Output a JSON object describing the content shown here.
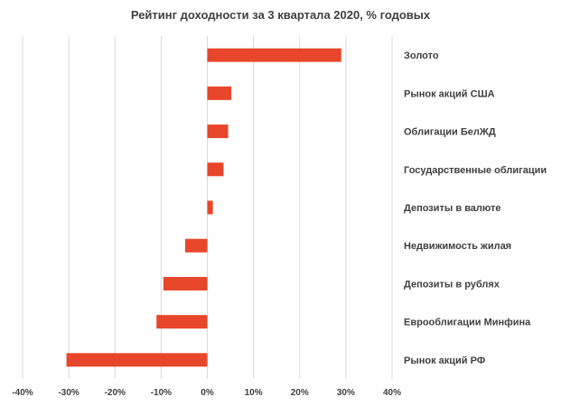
{
  "chart_data": {
    "type": "bar",
    "orientation": "horizontal",
    "title": "Рейтинг доходности за 3 квартала 2020, % годовых",
    "categories": [
      "Золото",
      "Рынок акций США",
      "Облигации БелЖД",
      "Государственные облигации",
      "Депозиты в валюте",
      "Недвижимость жилая",
      "Депозиты в рублях",
      "Еврооблигации Минфина",
      "Рынок акций РФ"
    ],
    "values": [
      29,
      5.2,
      4.5,
      3.5,
      1.2,
      -4.8,
      -9.5,
      -11,
      -30.5
    ],
    "xlim": [
      -40,
      40
    ],
    "x_ticks": [
      "-40%",
      "-30%",
      "-20%",
      "-10%",
      "0%",
      "10%",
      "20%",
      "30%",
      "40%"
    ],
    "grid": "vertical",
    "bar_color": "#e8462a",
    "category_label_position": "right"
  }
}
